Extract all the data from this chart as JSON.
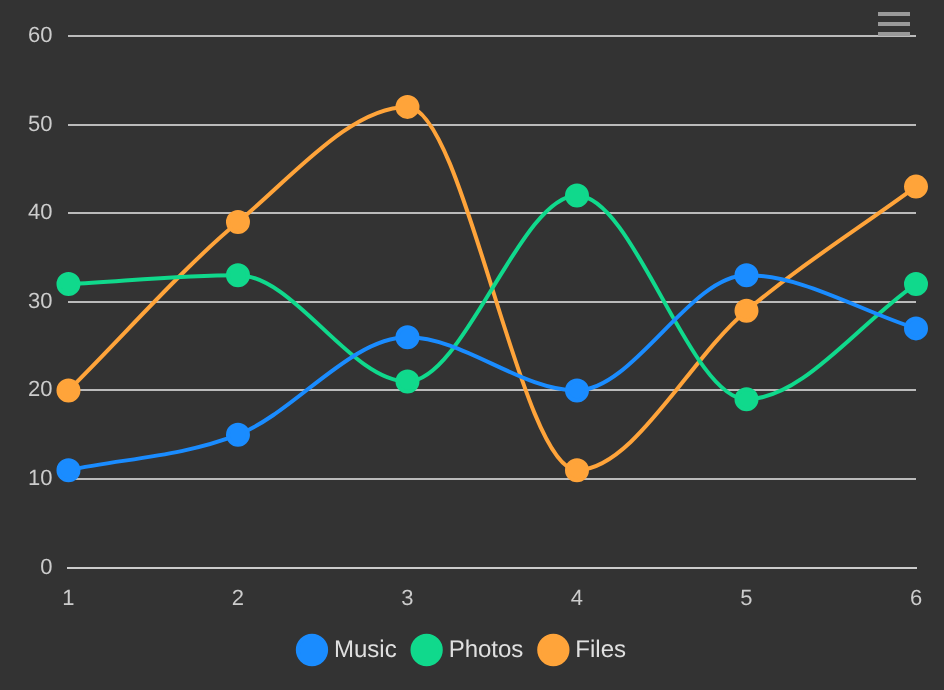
{
  "chart_data": {
    "type": "line",
    "categories": [
      "1",
      "2",
      "3",
      "4",
      "5",
      "6"
    ],
    "series": [
      {
        "name": "Music",
        "color": "#1a8cff",
        "values": [
          11,
          15,
          26,
          20,
          33,
          27
        ]
      },
      {
        "name": "Photos",
        "color": "#10d98c",
        "values": [
          32,
          33,
          21,
          42,
          19,
          32
        ]
      },
      {
        "name": "Files",
        "color": "#ffa43a",
        "values": [
          20,
          39,
          52,
          11,
          29,
          43
        ]
      }
    ],
    "ylim": [
      0,
      60
    ],
    "yticks": [
      0,
      10,
      20,
      30,
      40,
      50,
      60
    ],
    "grid": "y",
    "legend": "bottom",
    "marker": "circle",
    "line_style": "solid"
  }
}
